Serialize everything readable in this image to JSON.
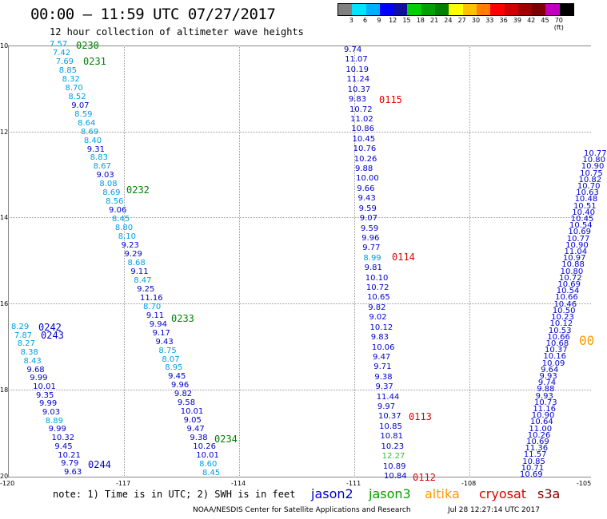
{
  "header": {
    "title": "00:00 – 11:59 UTC 07/27/2017",
    "subtitle": "12 hour collection of altimeter wave heights"
  },
  "legend": {
    "colors": [
      "#808080",
      "#00e5ff",
      "#00b0ff",
      "#0000ff",
      "#1010a0",
      "#00d000",
      "#00a000",
      "#008000",
      "#ffff00",
      "#ffc000",
      "#ff8000",
      "#ff0000",
      "#d00000",
      "#a00000",
      "#800000",
      "#c000c0",
      "#000000"
    ],
    "labels": [
      "3",
      "6",
      "9",
      "12",
      "15",
      "18",
      "21",
      "24",
      "27",
      "30",
      "33",
      "36",
      "39",
      "42",
      "45",
      "70 (ft)"
    ]
  },
  "axes": {
    "lat_ticks": [
      "10",
      "12",
      "14",
      "16",
      "18",
      "20"
    ],
    "lon_ticks": [
      "-120",
      "-117",
      "-114",
      "-111",
      "-108",
      "-105"
    ]
  },
  "tracks": {
    "track_a": {
      "color": "#00a0e0",
      "values": [
        "7.57",
        "7.42",
        "7.69",
        "8.85",
        "8.32",
        "8.70",
        "8.52",
        "9.07",
        "8.59",
        "8.64",
        "8.69",
        "8.40",
        "9.31",
        "8.83",
        "8.67",
        "9.03",
        "8.08",
        "8.69",
        "8.56",
        "9.06",
        "8.45",
        "8.80",
        "8.10",
        "9.23",
        "9.29",
        "8.68",
        "9.11",
        "8.47",
        "9.25",
        "11.16",
        "8.70",
        "9.11",
        "9.94",
        "9.17",
        "9.43",
        "8.75",
        "8.07",
        "8.95",
        "9.45",
        "9.96",
        "9.82",
        "9.58",
        "10.01",
        "9.05",
        "9.47",
        "9.38",
        "10.26",
        "10.01",
        "8.60",
        "8.45"
      ]
    },
    "track_b": {
      "values": [
        "8.29",
        "7.87",
        "8.27",
        "8.38",
        "8.43",
        "9.68",
        "9.99",
        "10.01",
        "9.35",
        "9.99",
        "9.03",
        "8.89",
        "9.99",
        "10.32",
        "9.45",
        "10.21",
        "9.79",
        "9.63"
      ]
    },
    "track_c": {
      "values": [
        "9.74",
        "11.07",
        "10.19",
        "11.24",
        "10.37",
        "9.83",
        "10.72",
        "11.02",
        "10.86",
        "10.45",
        "10.76",
        "10.26",
        "9.88",
        "10.00",
        "9.66",
        "9.43",
        "9.59",
        "9.07",
        "9.59",
        "9.96",
        "9.77",
        "8.99",
        "9.81",
        "10.10",
        "10.72",
        "10.65",
        "9.82",
        "9.02",
        "10.12",
        "9.83",
        "10.06",
        "9.47",
        "9.71",
        "9.38",
        "9.37",
        "11.44",
        "9.97",
        "10.37",
        "10.85",
        "10.81",
        "10.23",
        "12.27",
        "10.89",
        "10.84"
      ]
    },
    "track_d": {
      "values": [
        "10.69",
        "10.71",
        "10.85",
        "11.57",
        "11.36",
        "10.69",
        "10.26",
        "11.00",
        "10.64",
        "10.90",
        "11.16",
        "10.73",
        "9.93",
        "9.88",
        "9.74",
        "9.93",
        "9.64",
        "10.09",
        "10.16",
        "10.37",
        "10.68",
        "10.66",
        "10.53",
        "10.12",
        "10.23",
        "10.50",
        "10.46",
        "10.66",
        "10.54",
        "10.69",
        "10.72",
        "10.80",
        "10.88",
        "10.97",
        "11.04",
        "10.90",
        "10.77",
        "10.69",
        "10.54",
        "10.45",
        "10.40",
        "10.51",
        "10.48",
        "10.63",
        "10.70",
        "10.82",
        "10.75",
        "10.90",
        "10.80",
        "10.77"
      ]
    }
  },
  "times": {
    "t0230": "0230",
    "t0231": "0231",
    "t0232": "0232",
    "t0233": "0233",
    "t0234": "0234",
    "t0242": "0242",
    "t0243": "0243",
    "t0244": "0244",
    "t0115": "0115",
    "t0114": "0114",
    "t0113": "0113",
    "t0112": "0112",
    "t_altika": "00"
  },
  "footer": {
    "note": "note: 1) Time is in UTC; 2) SWH is in feet",
    "satellites": [
      {
        "name": "jason2",
        "color": "#0000cc"
      },
      {
        "name": "jason3",
        "color": "#00a000"
      },
      {
        "name": "altika",
        "color": "#ff9900"
      },
      {
        "name": "cryosat",
        "color": "#e00000"
      },
      {
        "name": "s3a",
        "color": "#800000"
      }
    ],
    "credit": "NOAA/NESDIS Center for Satellite Applications and Research",
    "stamp": "Jul 28 12:27:14 UTC 2017"
  }
}
